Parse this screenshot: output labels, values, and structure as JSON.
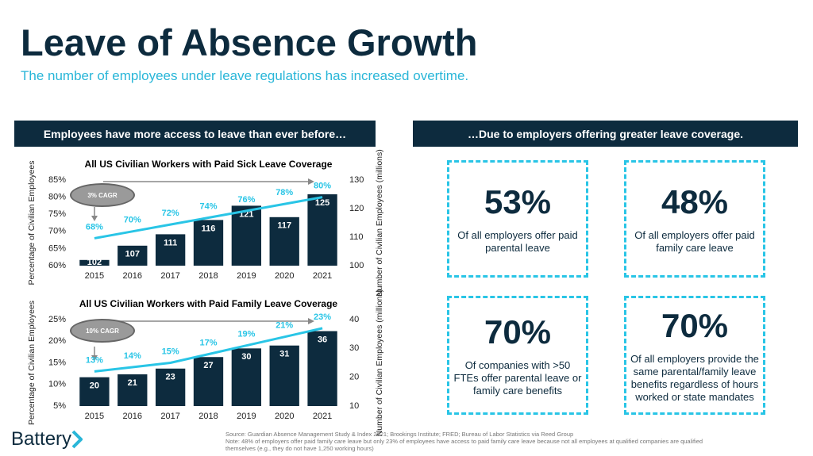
{
  "title": "Leave of Absence Growth",
  "subtitle": "The number of employees under leave regulations has increased overtime.",
  "left_header": "Employees have more access to leave than ever before…",
  "right_header": "…Due to employers offering greater leave coverage.",
  "chart_data": [
    {
      "type": "combo",
      "title": "All US Civilian Workers with Paid Sick Leave Coverage",
      "categories": [
        "2015",
        "2016",
        "2017",
        "2018",
        "2019",
        "2020",
        "2021"
      ],
      "series": [
        {
          "type": "bar",
          "axis": "y2",
          "color": "#0d2b3e",
          "values": [
            102,
            107,
            111,
            116,
            121,
            117,
            125
          ]
        },
        {
          "type": "line",
          "color": "#29c5e6",
          "values": [
            68,
            70,
            72,
            74,
            76,
            78,
            80
          ],
          "value_labels": [
            "68%",
            "70%",
            "72%",
            "74%",
            "76%",
            "78%",
            "80%"
          ]
        }
      ],
      "ylabel": "Percentage of Civilian Employees",
      "y2label": "Number of Civilian Employees (millions)",
      "ylim": [
        60,
        85
      ],
      "yticks": [
        {
          "value": 60,
          "label": "60%"
        },
        {
          "value": 65,
          "label": "65%"
        },
        {
          "value": 70,
          "label": "70%"
        },
        {
          "value": 75,
          "label": "75%"
        },
        {
          "value": 80,
          "label": "80%"
        },
        {
          "value": 85,
          "label": "85%"
        }
      ],
      "y2lim": [
        100,
        130
      ],
      "y2ticks": [
        100,
        110,
        120,
        130
      ],
      "annotation": "3% CAGR"
    },
    {
      "type": "combo",
      "title": "All US Civilian Workers with Paid Family Leave Coverage",
      "categories": [
        "2015",
        "2016",
        "2017",
        "2018",
        "2019",
        "2020",
        "2021"
      ],
      "series": [
        {
          "type": "bar",
          "axis": "y2",
          "color": "#0d2b3e",
          "values": [
            20,
            21,
            23,
            27,
            30,
            31,
            36
          ]
        },
        {
          "type": "line",
          "color": "#29c5e6",
          "values": [
            13,
            14,
            15,
            17,
            19,
            21,
            23
          ],
          "value_labels": [
            "13%",
            "14%",
            "15%",
            "17%",
            "19%",
            "21%",
            "23%"
          ]
        }
      ],
      "ylabel": "Percentage of Civilian Employees",
      "y2label": "Number of Civilian Employees (millions)",
      "ylim": [
        5,
        25
      ],
      "yticks": [
        {
          "value": 5,
          "label": "5%"
        },
        {
          "value": 10,
          "label": "10%"
        },
        {
          "value": 15,
          "label": "15%"
        },
        {
          "value": 20,
          "label": "20%"
        },
        {
          "value": 25,
          "label": "25%"
        }
      ],
      "y2lim": [
        10,
        40
      ],
      "y2ticks": [
        10,
        20,
        30,
        40
      ],
      "annotation": "10% CAGR"
    }
  ],
  "stats": [
    {
      "value": "53%",
      "text": "Of all employers offer paid parental leave"
    },
    {
      "value": "48%",
      "text": "Of all employers offer paid family care leave"
    },
    {
      "value": "70%",
      "text": "Of companies with >50 FTEs offer parental leave or family care benefits"
    },
    {
      "value": "70%",
      "text": "Of all employers provide the same parental/family leave benefits regardless of hours worked or state mandates"
    }
  ],
  "source": "Source: Guardian Absence Management Study & Index 2021; Brookings Institute; FRED; Bureau of Labor Statistics via Reed Group",
  "note": "Note: 48% of employers offer paid family care leave but only 23% of employees have access to paid family care leave because not all employees at qualified companies are qualified themselves (e.g., they do not have 1,250 working hours)",
  "logo": "Battery"
}
